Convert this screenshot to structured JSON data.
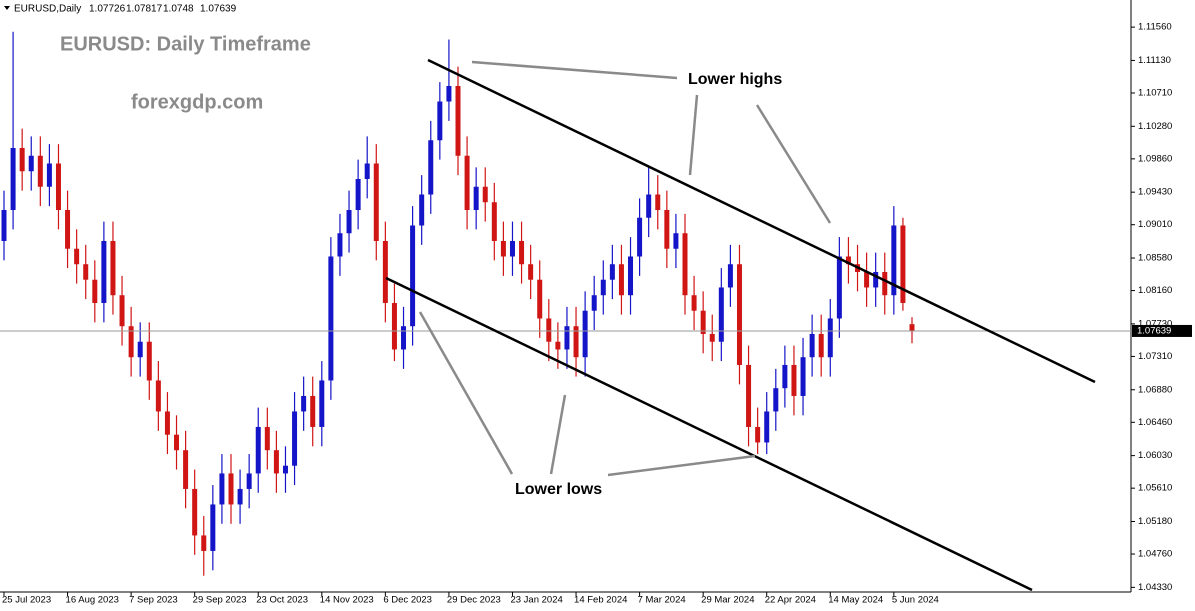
{
  "chart_data": {
    "type": "candlestick",
    "symbol": "EURUSD,Daily",
    "title": "EURUSD: Daily Timeframe",
    "subtitle": "forexgdp.com",
    "annotations": [
      "Lower highs",
      "Lower lows"
    ],
    "up_color": "#1414c8",
    "down_color": "#d01515",
    "ylim": [
      1.0427,
      1.1191
    ],
    "yticks": [
      {
        "value": 1.1156,
        "label": "1.11560"
      },
      {
        "value": 1.1113,
        "label": "1.11130"
      },
      {
        "value": 1.1071,
        "label": "1.10710"
      },
      {
        "value": 1.1028,
        "label": "1.10280"
      },
      {
        "value": 1.0986,
        "label": "1.09860"
      },
      {
        "value": 1.0943,
        "label": "1.09430"
      },
      {
        "value": 1.0901,
        "label": "1.09010"
      },
      {
        "value": 1.0858,
        "label": "1.08580"
      },
      {
        "value": 1.0816,
        "label": "1.08160"
      },
      {
        "value": 1.0773,
        "label": "1.07730"
      },
      {
        "value": 1.0731,
        "label": "1.07310"
      },
      {
        "value": 1.0688,
        "label": "1.06880"
      },
      {
        "value": 1.0646,
        "label": "1.06460"
      },
      {
        "value": 1.0603,
        "label": "1.06030"
      },
      {
        "value": 1.0561,
        "label": "1.05610"
      },
      {
        "value": 1.0518,
        "label": "1.05180"
      },
      {
        "value": 1.0476,
        "label": "1.04760"
      },
      {
        "value": 1.0433,
        "label": "1.04330"
      }
    ],
    "categories": [
      "25 Jul 2023",
      null,
      null,
      null,
      null,
      null,
      null,
      "16 Aug 2023",
      null,
      null,
      null,
      null,
      null,
      null,
      "7 Sep 2023",
      null,
      null,
      null,
      null,
      null,
      null,
      "29 Sep 2023",
      null,
      null,
      null,
      null,
      null,
      null,
      "23 Oct 2023",
      null,
      null,
      null,
      null,
      null,
      null,
      "14 Nov 2023",
      null,
      null,
      null,
      null,
      null,
      null,
      "6 Dec 2023",
      null,
      null,
      null,
      null,
      null,
      null,
      "29 Dec 2023",
      null,
      null,
      null,
      null,
      null,
      null,
      "23 Jan 2024",
      null,
      null,
      null,
      null,
      null,
      null,
      "14 Feb 2024",
      null,
      null,
      null,
      null,
      null,
      null,
      "7 Mar 2024",
      null,
      null,
      null,
      null,
      null,
      null,
      "29 Mar 2024",
      null,
      null,
      null,
      null,
      null,
      null,
      "22 Apr 2024",
      null,
      null,
      null,
      null,
      null,
      null,
      "14 May 2024",
      null,
      null,
      null,
      null,
      null,
      null,
      "5 Jun 2024",
      null,
      null
    ],
    "open": [
      1.088,
      1.092,
      1.1,
      1.097,
      1.099,
      1.095,
      1.098,
      1.092,
      1.087,
      1.085,
      1.083,
      1.08,
      1.088,
      1.081,
      1.077,
      1.073,
      1.075,
      1.07,
      1.066,
      1.063,
      1.061,
      1.056,
      1.05,
      1.048,
      1.054,
      1.058,
      1.054,
      1.056,
      1.058,
      1.064,
      1.061,
      1.058,
      1.059,
      1.066,
      1.068,
      1.064,
      1.07,
      1.086,
      1.089,
      1.092,
      1.096,
      1.098,
      1.088,
      1.08,
      1.074,
      1.077,
      1.09,
      1.094,
      1.101,
      1.106,
      1.108,
      1.099,
      1.092,
      1.095,
      1.093,
      1.088,
      1.086,
      1.088,
      1.085,
      1.083,
      1.078,
      1.075,
      1.074,
      1.077,
      1.073,
      1.079,
      1.081,
      1.083,
      1.085,
      1.081,
      1.086,
      1.091,
      1.094,
      1.092,
      1.087,
      1.089,
      1.081,
      1.079,
      1.076,
      1.075,
      1.082,
      1.085,
      1.072,
      1.064,
      1.062,
      1.066,
      1.069,
      1.072,
      1.068,
      1.073,
      1.076,
      1.073,
      1.078,
      1.086,
      1.085,
      1.084,
      1.082,
      1.084,
      1.081,
      1.09,
      1.07726
    ],
    "high": [
      1.0945,
      1.115,
      1.1025,
      1.1015,
      1.1015,
      1.1005,
      1.1005,
      1.0945,
      1.0895,
      1.0875,
      1.0855,
      1.0905,
      1.0905,
      1.0835,
      1.0795,
      1.0775,
      1.0775,
      1.0725,
      1.0685,
      1.0655,
      1.0635,
      1.0585,
      1.0525,
      1.0565,
      1.0605,
      1.0605,
      1.0585,
      1.0605,
      1.0665,
      1.0665,
      1.0635,
      1.0615,
      1.0685,
      1.0705,
      1.0705,
      1.0725,
      1.0885,
      1.0915,
      1.0945,
      1.0985,
      1.1015,
      1.1005,
      1.0905,
      1.0825,
      1.0795,
      1.0925,
      1.0965,
      1.1035,
      1.1085,
      1.114,
      1.1105,
      1.1015,
      1.0975,
      1.0975,
      1.0955,
      1.0905,
      1.0905,
      1.0905,
      1.0875,
      1.0855,
      1.0805,
      1.0775,
      1.0795,
      1.0795,
      1.0815,
      1.0835,
      1.0855,
      1.0875,
      1.0875,
      1.0885,
      1.0935,
      1.0975,
      1.0965,
      1.0945,
      1.0915,
      1.0915,
      1.0835,
      1.0815,
      1.0785,
      1.0845,
      1.0875,
      1.0875,
      1.0745,
      1.0665,
      1.0685,
      1.0715,
      1.0745,
      1.0745,
      1.0755,
      1.0785,
      1.0785,
      1.0805,
      1.0885,
      1.0885,
      1.0875,
      1.0865,
      1.0865,
      1.0865,
      1.0925,
      1.091,
      1.07817
    ],
    "low": [
      1.0855,
      1.0895,
      1.0945,
      1.0945,
      1.0925,
      1.0925,
      1.0895,
      1.0845,
      1.0825,
      1.0805,
      1.0775,
      1.0775,
      1.0785,
      1.0745,
      1.0705,
      1.0705,
      1.0675,
      1.0635,
      1.0605,
      1.0585,
      1.0535,
      1.0475,
      1.0448,
      1.0455,
      1.0515,
      1.0515,
      1.0515,
      1.0535,
      1.0555,
      1.0585,
      1.0555,
      1.0555,
      1.0565,
      1.0635,
      1.0615,
      1.0615,
      1.0675,
      1.0835,
      1.0865,
      1.0895,
      1.0935,
      1.0855,
      1.0775,
      1.0725,
      1.0715,
      1.0745,
      1.0875,
      1.0915,
      1.0985,
      1.1035,
      1.0965,
      1.0895,
      1.0895,
      1.0905,
      1.0855,
      1.0835,
      1.0835,
      1.0825,
      1.0805,
      1.0755,
      1.0725,
      1.0715,
      1.0715,
      1.0705,
      1.0705,
      1.0765,
      1.0785,
      1.0805,
      1.0785,
      1.0785,
      1.0835,
      1.0885,
      1.0895,
      1.0845,
      1.0845,
      1.0785,
      1.0765,
      1.0735,
      1.0725,
      1.0725,
      1.0795,
      1.0695,
      1.0615,
      1.0605,
      1.0605,
      1.0635,
      1.0665,
      1.0655,
      1.0655,
      1.0705,
      1.0705,
      1.0705,
      1.0755,
      1.0825,
      1.0815,
      1.0795,
      1.0795,
      1.0785,
      1.0785,
      1.079,
      1.0748
    ],
    "close": [
      1.092,
      1.1,
      1.097,
      1.099,
      1.095,
      1.098,
      1.092,
      1.087,
      1.085,
      1.083,
      1.08,
      1.088,
      1.081,
      1.077,
      1.073,
      1.075,
      1.07,
      1.066,
      1.063,
      1.061,
      1.056,
      1.05,
      1.048,
      1.054,
      1.058,
      1.054,
      1.056,
      1.058,
      1.064,
      1.061,
      1.058,
      1.059,
      1.066,
      1.068,
      1.064,
      1.07,
      1.086,
      1.089,
      1.092,
      1.096,
      1.098,
      1.088,
      1.08,
      1.074,
      1.077,
      1.09,
      1.094,
      1.101,
      1.106,
      1.108,
      1.099,
      1.092,
      1.095,
      1.093,
      1.088,
      1.086,
      1.088,
      1.085,
      1.083,
      1.078,
      1.075,
      1.074,
      1.077,
      1.073,
      1.079,
      1.081,
      1.083,
      1.085,
      1.081,
      1.086,
      1.091,
      1.094,
      1.092,
      1.087,
      1.089,
      1.081,
      1.079,
      1.076,
      1.075,
      1.082,
      1.085,
      1.072,
      1.064,
      1.062,
      1.066,
      1.069,
      1.072,
      1.068,
      1.073,
      1.076,
      1.073,
      1.078,
      1.086,
      1.085,
      1.084,
      1.082,
      1.084,
      1.081,
      1.09,
      1.08,
      1.07639
    ]
  }
}
